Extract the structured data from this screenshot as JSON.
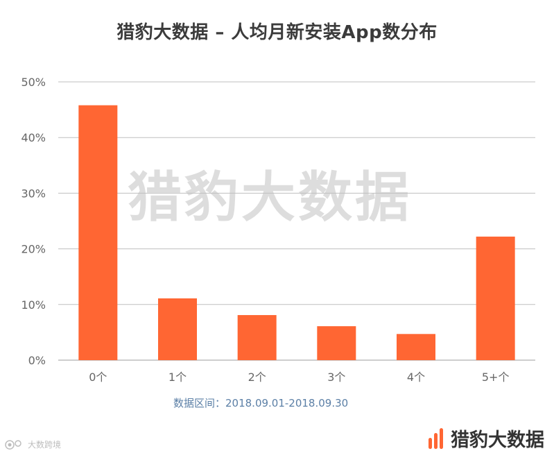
{
  "title": "猎豹大数据 – 人均月新安装App数分布",
  "chart_data": {
    "type": "bar",
    "categories": [
      "0个",
      "1个",
      "2个",
      "3个",
      "4个",
      "5+个"
    ],
    "values": [
      45.8,
      11.1,
      8.1,
      6.1,
      4.7,
      22.2
    ],
    "unit": "%",
    "ylim": [
      0,
      50
    ],
    "yticks": [
      0,
      10,
      20,
      30,
      40,
      50
    ],
    "ytick_labels": [
      "0%",
      "10%",
      "20%",
      "30%",
      "40%",
      "50%"
    ],
    "grid": true,
    "bar_color": "#ff6633"
  },
  "date_range": "数据区间：2018.09.01-2018.09.30",
  "brand": {
    "name": "猎豹大数据",
    "color": "#ff6633"
  },
  "watermark_bottom": "大数跨境",
  "watermark_center": "猎豹大数据",
  "colors": {
    "grid": "#bfbfbf",
    "axis_text": "#666666",
    "title": "#3b3b3b",
    "date_text": "#5b7fa6"
  }
}
